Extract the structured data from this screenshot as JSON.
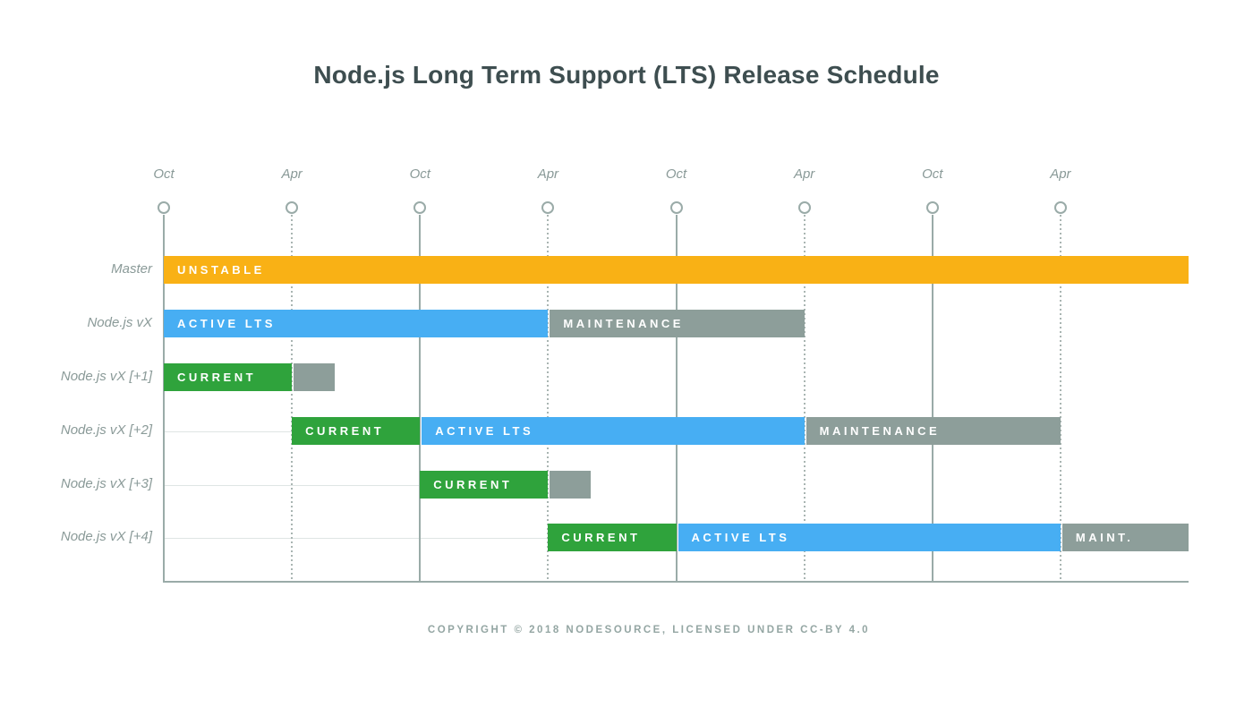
{
  "title": "Node.js Long Term Support (LTS) Release Schedule",
  "footer": {
    "text": "COPYRIGHT © 2018 NODESOURCE, LICENSED UNDER CC-BY 4.0"
  },
  "colors": {
    "unstable": "#f9b115",
    "current": "#2fa33c",
    "active_lts": "#47aef3",
    "maintenance": "#8d9e9a",
    "axis": "#9aaba8",
    "grid_dashed": "#a9b5b2",
    "lead_line": "#dfe5e4",
    "title_text": "#3e4e50",
    "muted_text": "#8a9a98",
    "footer_text": "#94a6a3",
    "bar_label_text": "#ffffff"
  },
  "chart_data": {
    "type": "bar",
    "subtype": "gantt-timeline",
    "title": "Node.js Long Term Support (LTS) Release Schedule",
    "grid": true,
    "legend": null,
    "x_axis": {
      "unit": "half-year intervals (Oct/Apr markers)",
      "range_pct": [
        0,
        100
      ],
      "ticks": [
        {
          "label": "Oct",
          "pct": 0,
          "line": "solid"
        },
        {
          "label": "Apr",
          "pct": 12.5,
          "line": "dashed"
        },
        {
          "label": "Oct",
          "pct": 25,
          "line": "solid"
        },
        {
          "label": "Apr",
          "pct": 37.5,
          "line": "dashed"
        },
        {
          "label": "Oct",
          "pct": 50,
          "line": "solid"
        },
        {
          "label": "Apr",
          "pct": 62.5,
          "line": "dashed"
        },
        {
          "label": "Oct",
          "pct": 75,
          "line": "solid"
        },
        {
          "label": "Apr",
          "pct": 87.5,
          "line": "dashed"
        }
      ]
    },
    "rows": [
      {
        "label": "Master",
        "bars": [
          {
            "name": "UNSTABLE",
            "state": "unstable",
            "start_pct": 0,
            "end_pct": 100
          }
        ]
      },
      {
        "label": "Node.js vX",
        "bars": [
          {
            "name": "ACTIVE LTS",
            "state": "active_lts",
            "start_pct": 0,
            "end_pct": 37.5
          },
          {
            "name": "MAINTENANCE",
            "state": "maintenance",
            "start_pct": 37.5,
            "end_pct": 62.5
          }
        ]
      },
      {
        "label": "Node.js vX [+1]",
        "bars": [
          {
            "name": "CURRENT",
            "state": "current",
            "start_pct": 0,
            "end_pct": 12.5
          },
          {
            "name": "",
            "state": "maintenance",
            "start_pct": 12.5,
            "end_pct": 16.7
          }
        ]
      },
      {
        "label": "Node.js vX [+2]",
        "bars": [
          {
            "name": "CURRENT",
            "state": "current",
            "start_pct": 12.5,
            "end_pct": 25
          },
          {
            "name": "ACTIVE LTS",
            "state": "active_lts",
            "start_pct": 25,
            "end_pct": 62.5
          },
          {
            "name": "MAINTENANCE",
            "state": "maintenance",
            "start_pct": 62.5,
            "end_pct": 87.5
          }
        ]
      },
      {
        "label": "Node.js vX [+3]",
        "bars": [
          {
            "name": "CURRENT",
            "state": "current",
            "start_pct": 25,
            "end_pct": 37.5
          },
          {
            "name": "",
            "state": "maintenance",
            "start_pct": 37.5,
            "end_pct": 41.7
          }
        ]
      },
      {
        "label": "Node.js vX [+4]",
        "bars": [
          {
            "name": "CURRENT",
            "state": "current",
            "start_pct": 37.5,
            "end_pct": 50
          },
          {
            "name": "ACTIVE LTS",
            "state": "active_lts",
            "start_pct": 50,
            "end_pct": 87.5
          },
          {
            "name": "MAINT.",
            "state": "maintenance",
            "start_pct": 87.5,
            "end_pct": 100
          }
        ]
      }
    ]
  }
}
